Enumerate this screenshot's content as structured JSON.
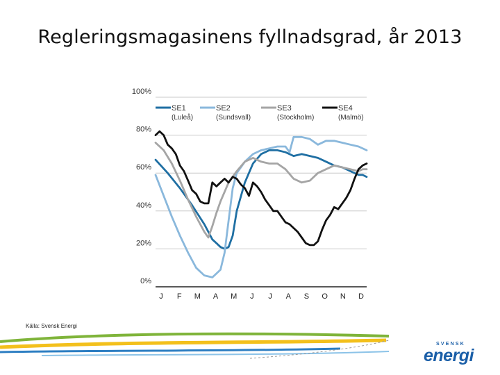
{
  "slide": {
    "title": "Regleringsmagasinens fyllnadsgrad, år 2013",
    "source": "Källa: Svensk Energi"
  },
  "logo": {
    "sub": "SVENSK",
    "main": "energi",
    "color": "#1b5fa8"
  },
  "chart_data": {
    "type": "line",
    "title": "",
    "xlabel": "",
    "ylabel": "",
    "x_ticks": [
      "J",
      "F",
      "M",
      "A",
      "M",
      "J",
      "J",
      "A",
      "S",
      "O",
      "N",
      "D"
    ],
    "y_ticks": [
      "0%",
      "20%",
      "40%",
      "60%",
      "80%",
      "100%"
    ],
    "xlim": [
      0,
      52
    ],
    "ylim": [
      0,
      100
    ],
    "grid": true,
    "legend_position": "top",
    "series": [
      {
        "name": "SE1",
        "sublabel": "(Luleå)",
        "color": "#1f6fa3",
        "x": [
          0,
          3,
          6,
          9,
          12,
          14,
          15,
          16,
          17,
          18,
          19,
          20,
          22,
          24,
          26,
          28,
          30,
          32,
          34,
          36,
          38,
          40,
          42,
          44,
          46,
          48,
          50,
          51,
          52
        ],
        "y": [
          67,
          60,
          52,
          43,
          33,
          25,
          23,
          21,
          20,
          21,
          27,
          40,
          55,
          65,
          70,
          72,
          72,
          71,
          69,
          70,
          69,
          68,
          66,
          64,
          63,
          61,
          59,
          59,
          58
        ]
      },
      {
        "name": "SE2",
        "sublabel": "(Sundsvall)",
        "color": "#8ab8dc",
        "x": [
          0,
          2,
          4,
          6,
          8,
          10,
          12,
          14,
          15,
          16,
          17,
          18,
          19,
          20,
          21,
          22,
          24,
          26,
          28,
          30,
          32,
          33,
          34,
          36,
          38,
          40,
          42,
          44,
          46,
          48,
          50,
          52
        ],
        "y": [
          59,
          48,
          37,
          27,
          18,
          10,
          6,
          5,
          7,
          9,
          18,
          35,
          52,
          60,
          63,
          66,
          70,
          72,
          73,
          74,
          74,
          71,
          79,
          79,
          78,
          75,
          77,
          77,
          76,
          75,
          74,
          72
        ]
      },
      {
        "name": "SE3",
        "sublabel": "(Stockholm)",
        "color": "#a5a5a5",
        "x": [
          0,
          2,
          4,
          6,
          8,
          10,
          12,
          13,
          14,
          15,
          16,
          18,
          20,
          22,
          24,
          26,
          28,
          30,
          32,
          34,
          36,
          38,
          40,
          42,
          44,
          46,
          48,
          50,
          51,
          52
        ],
        "y": [
          76,
          72,
          65,
          56,
          46,
          37,
          29,
          26,
          32,
          39,
          45,
          55,
          61,
          66,
          68,
          66,
          65,
          65,
          62,
          57,
          55,
          56,
          60,
          62,
          64,
          63,
          62,
          61,
          62,
          62
        ]
      },
      {
        "name": "SE4",
        "sublabel": "(Malmö)",
        "color": "#111111",
        "x": [
          0,
          1,
          2,
          3,
          4,
          5,
          6,
          7,
          8,
          9,
          10,
          11,
          12,
          13,
          14,
          15,
          16,
          17,
          18,
          19,
          20,
          21,
          22,
          23,
          24,
          25,
          26,
          27,
          28,
          29,
          30,
          31,
          32,
          33,
          34,
          35,
          36,
          37,
          38,
          39,
          40,
          41,
          42,
          43,
          44,
          45,
          46,
          47,
          48,
          49,
          50,
          51,
          52
        ],
        "y": [
          80,
          82,
          80,
          75,
          73,
          70,
          64,
          61,
          56,
          51,
          49,
          45,
          44,
          44,
          55,
          53,
          55,
          57,
          55,
          58,
          57,
          54,
          52,
          48,
          55,
          53,
          50,
          46,
          43,
          40,
          40,
          37,
          34,
          33,
          31,
          29,
          26,
          23,
          22,
          22,
          24,
          30,
          35,
          38,
          42,
          41,
          44,
          47,
          51,
          57,
          62,
          64,
          65
        ]
      }
    ]
  }
}
